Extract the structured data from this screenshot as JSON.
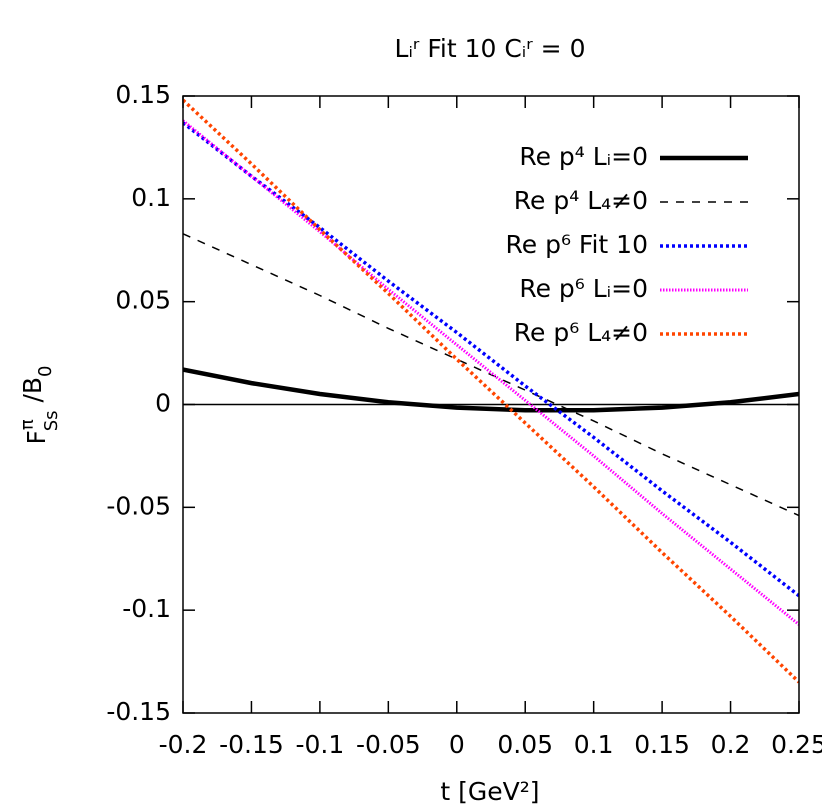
{
  "chart_data": {
    "type": "line",
    "title": "Lᵢʳ Fit 10    Cᵢʳ = 0",
    "xlabel": "t    [GeV²]",
    "ylabel": [
      "F",
      "π",
      "Ss",
      " /B",
      "0"
    ],
    "x": [
      -0.2,
      -0.15,
      -0.1,
      -0.05,
      0,
      0.05,
      0.1,
      0.15,
      0.2,
      0.25
    ],
    "series": [
      {
        "name": "Re p⁴ Lᵢ=0",
        "color": "#000000",
        "style": "thick",
        "values": [
          0.017,
          0.0104,
          0.0051,
          0.0011,
          -0.0015,
          -0.0028,
          -0.0028,
          -0.0015,
          0.0011,
          0.0051
        ]
      },
      {
        "name": "Re p⁴ L₄≠0",
        "color": "#000000",
        "style": "dashed",
        "values": [
          0.083,
          0.068,
          0.053,
          0.037,
          0.022,
          0.007,
          -0.008,
          -0.024,
          -0.039,
          -0.054
        ]
      },
      {
        "name": "Re p⁶ Fit 10",
        "color": "#0000ff",
        "style": "dotted",
        "values": [
          0.137,
          0.111,
          0.086,
          0.06,
          0.035,
          0.009,
          -0.016,
          -0.042,
          -0.067,
          -0.093
        ]
      },
      {
        "name": "Re p⁶ Lᵢ=0",
        "color": "#ff00ff",
        "style": "fine",
        "values": [
          0.138,
          0.111,
          0.084,
          0.056,
          0.029,
          0.002,
          -0.025,
          -0.053,
          -0.08,
          -0.107
        ]
      },
      {
        "name": "Re p⁶ L₄≠0",
        "color": "#ff4500",
        "style": "dotted",
        "values": [
          0.148,
          0.117,
          0.085,
          0.054,
          0.022,
          -0.009,
          -0.04,
          -0.072,
          -0.103,
          -0.135
        ]
      }
    ],
    "xlim": [
      -0.2,
      0.25
    ],
    "xticks": [
      -0.2,
      -0.15,
      -0.1,
      -0.05,
      0,
      0.05,
      0.1,
      0.15,
      0.2,
      0.25
    ],
    "ylim": [
      -0.15,
      0.15
    ],
    "yticks": [
      -0.15,
      -0.1,
      -0.05,
      0,
      0.05,
      0.1,
      0.15
    ],
    "zero_line": true,
    "legend": "top-right"
  }
}
